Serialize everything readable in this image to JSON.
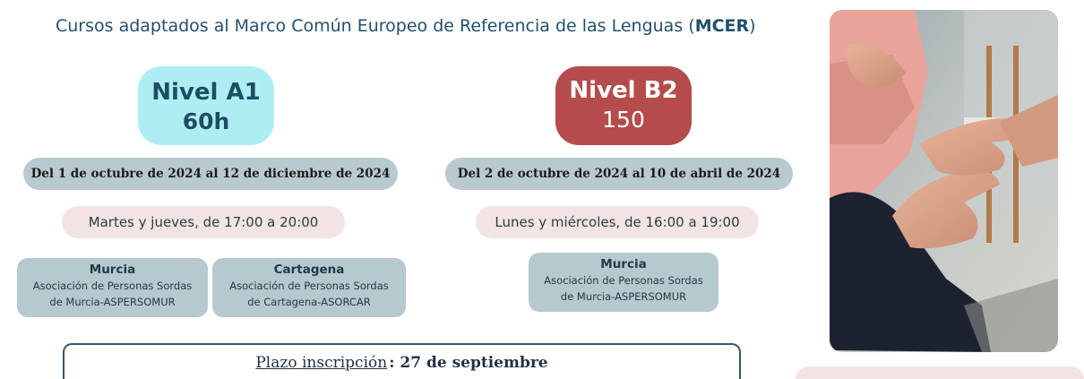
{
  "heading": {
    "text": "Cursos adaptados al Marco Común Europeo de Referencia de las Lenguas (",
    "bold": "MCER",
    "close": ")"
  },
  "courses": {
    "a1": {
      "name": "Nivel A1",
      "hours": "60h",
      "dates": "Del 1  de octubre de 2024 al 12 de diciembre de 2024",
      "schedule": "Martes y jueves, de 17:00 a 20:00",
      "locations": [
        {
          "city": "Murcia",
          "org_line1": "Asociación de Personas Sordas",
          "org_line2": "de Murcia-ASPERSOMUR"
        },
        {
          "city": "Cartagena",
          "org_line1": "Asociación de Personas Sordas",
          "org_line2": "de Cartagena-ASORCAR"
        }
      ]
    },
    "b2": {
      "name": "Nivel B2",
      "hours": "150",
      "dates": "Del 2  de octubre de 2024 al 10 de abril de 2024",
      "schedule": "Lunes y miércoles, de 16:00 a 19:00",
      "locations": [
        {
          "city": "Murcia",
          "org_line1": "Asociación de Personas Sordas",
          "org_line2": "de Murcia-ASPERSOMUR"
        }
      ]
    }
  },
  "deadline": {
    "label": "Plazo inscripción",
    "date": ": 27 de septiembre"
  },
  "colors": {
    "a1_badge": "#aeeef3",
    "b2_badge": "#b44c4c",
    "pill_blue": "#b8c9cf",
    "pill_pink": "#f1e4e3"
  }
}
